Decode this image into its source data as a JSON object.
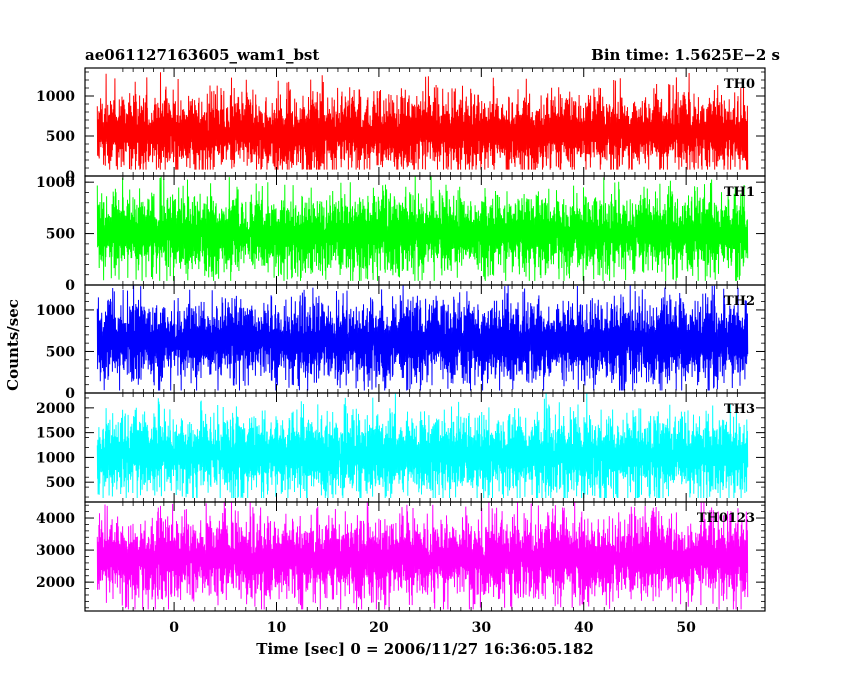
{
  "header": {
    "left_title": "ae061127163605_wam1_bst",
    "right_title": "Bin time: 1.5625E−2 s"
  },
  "chart_data": {
    "type": "line",
    "title": "ae061127163605_wam1_bst",
    "subtitle": "Bin time: 1.5625E−2 s",
    "xlabel": "Time [sec] 0 = 2006/11/27 16:36:05.182",
    "ylabel": "Counts/sec",
    "xlim": [
      -8.7,
      57.7
    ],
    "x_ticks": [
      0,
      10,
      20,
      30,
      40,
      50
    ],
    "x_tick_labels": [
      "0",
      "10",
      "20",
      "30",
      "40",
      "50"
    ],
    "data_x_range": [
      -7.5,
      56
    ],
    "bin_time": 0.015625,
    "grid": false,
    "panels": [
      {
        "name": "TH0",
        "color": "#ff0000",
        "ylim": [
          0,
          1350
        ],
        "y_ticks": [
          0,
          500,
          1000
        ],
        "y_tick_labels": [
          "0",
          "500",
          "1000"
        ],
        "mean": 540,
        "min": 80,
        "max": 1350
      },
      {
        "name": "TH1",
        "color": "#00ff00",
        "ylim": [
          0,
          1060
        ],
        "y_ticks": [
          0,
          500,
          1000
        ],
        "y_tick_labels": [
          "0",
          "500",
          "1000"
        ],
        "mean": 500,
        "min": 40,
        "max": 1060
      },
      {
        "name": "TH2",
        "color": "#0000ff",
        "ylim": [
          0,
          1300
        ],
        "y_ticks": [
          0,
          500,
          1000
        ],
        "y_tick_labels": [
          "0",
          "500",
          "1000"
        ],
        "mean": 620,
        "min": 30,
        "max": 1300
      },
      {
        "name": "TH3",
        "color": "#00ffff",
        "ylim": [
          100,
          2300
        ],
        "y_ticks": [
          500,
          1000,
          1500,
          2000
        ],
        "y_tick_labels": [
          "500",
          "1000",
          "1500",
          "2000"
        ],
        "mean": 1050,
        "min": 180,
        "max": 2300
      },
      {
        "name": "TH0123",
        "color": "#ff00ff",
        "ylim": [
          1100,
          4500
        ],
        "y_ticks": [
          2000,
          3000,
          4000
        ],
        "y_tick_labels": [
          "2000",
          "3000",
          "4000"
        ],
        "mean": 2750,
        "min": 1150,
        "max": 4500
      }
    ]
  }
}
